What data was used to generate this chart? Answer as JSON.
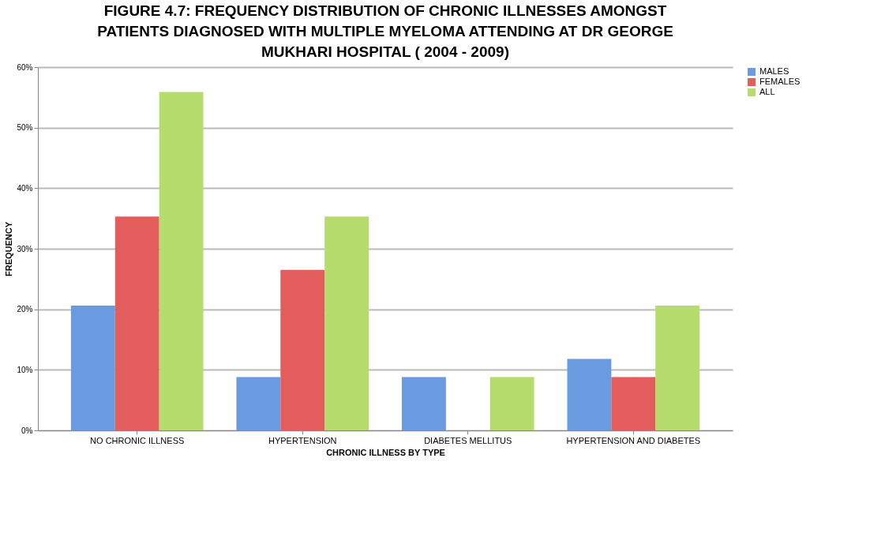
{
  "chart_data": {
    "type": "bar",
    "title": "FIGURE 4.7: FREQUENCY DISTRIBUTION OF CHRONIC ILLNESSES AMONGST PATIENTS DIAGNOSED WITH MULTIPLE MYELOMA ATTENDING AT DR GEORGE MUKHARI HOSPITAL ( 2004 - 2009)",
    "xlabel": "CHRONIC ILLNESS BY TYPE",
    "ylabel": "FREQUENCY",
    "categories": [
      "NO CHRONIC ILLNESS",
      "HYPERTENSION",
      "DIABETES MELLITUS",
      "HYPERTENSION AND DIABETES"
    ],
    "series": [
      {
        "name": "MALES",
        "color": "#6a9be0",
        "values": [
          20.6,
          8.8,
          8.8,
          11.8
        ]
      },
      {
        "name": "FEMALES",
        "color": "#e35d5d",
        "values": [
          35.3,
          26.5,
          0,
          8.8
        ]
      },
      {
        "name": "ALL",
        "color": "#b5dc6c",
        "values": [
          55.9,
          35.3,
          8.8,
          20.6
        ]
      }
    ],
    "ylim": [
      0,
      60
    ],
    "yticks": [
      {
        "value": 0,
        "label": "0%"
      },
      {
        "value": 10,
        "label": "10%"
      },
      {
        "value": 20,
        "label": "20%"
      },
      {
        "value": 30,
        "label": "30%"
      },
      {
        "value": 40,
        "label": "40%"
      },
      {
        "value": 50,
        "label": "50%"
      },
      {
        "value": 60,
        "label": "60%"
      }
    ],
    "grid": "y",
    "legend": "right"
  }
}
